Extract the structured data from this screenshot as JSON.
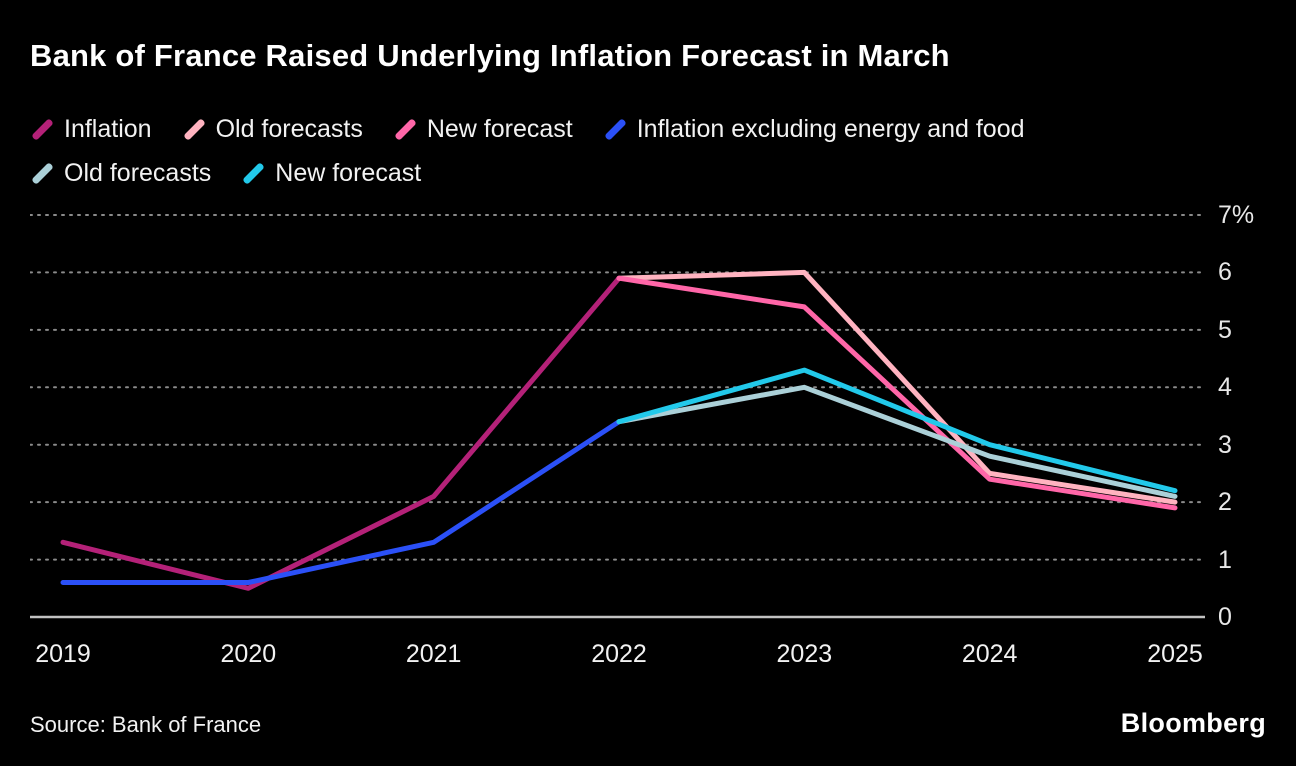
{
  "title": "Bank of France Raised Underlying Inflation Forecast in March",
  "source": "Source: Bank of France",
  "logo": "Bloomberg",
  "chart_data": {
    "type": "line",
    "x": [
      "2019",
      "2020",
      "2021",
      "2022",
      "2023",
      "2024",
      "2025"
    ],
    "series": [
      {
        "name": "Inflation",
        "color": "#b42178",
        "values": [
          1.3,
          0.5,
          2.1,
          5.9,
          null,
          null,
          null
        ]
      },
      {
        "name": "Old forecasts",
        "color": "#ffb3c0",
        "values": [
          null,
          null,
          null,
          5.9,
          6.0,
          2.5,
          2.0
        ]
      },
      {
        "name": "New forecast",
        "color": "#ff66a8",
        "values": [
          null,
          null,
          null,
          5.9,
          5.4,
          2.4,
          1.9
        ]
      },
      {
        "name": "Inflation excluding energy and food",
        "color": "#2b50f7",
        "values": [
          0.6,
          0.6,
          1.3,
          3.4,
          null,
          null,
          null
        ]
      },
      {
        "name": "Old forecasts",
        "color": "#abd0d8",
        "values": [
          null,
          null,
          null,
          3.4,
          4.0,
          2.8,
          2.1
        ]
      },
      {
        "name": "New forecast",
        "color": "#22c9ea",
        "values": [
          null,
          null,
          null,
          3.4,
          4.3,
          3.0,
          2.2
        ]
      }
    ],
    "yticks": [
      {
        "value": 7,
        "label": "7%"
      },
      {
        "value": 6,
        "label": "6"
      },
      {
        "value": 5,
        "label": "5"
      },
      {
        "value": 4,
        "label": "4"
      },
      {
        "value": 3,
        "label": "3"
      },
      {
        "value": 2,
        "label": "2"
      },
      {
        "value": 1,
        "label": "1"
      },
      {
        "value": 0,
        "label": "0"
      }
    ],
    "ylim": [
      0,
      7
    ],
    "grid": "dotted-horizontal",
    "legend_position": "top",
    "legend_rows": [
      [
        0,
        1,
        2,
        3
      ],
      [
        4,
        5
      ]
    ]
  }
}
